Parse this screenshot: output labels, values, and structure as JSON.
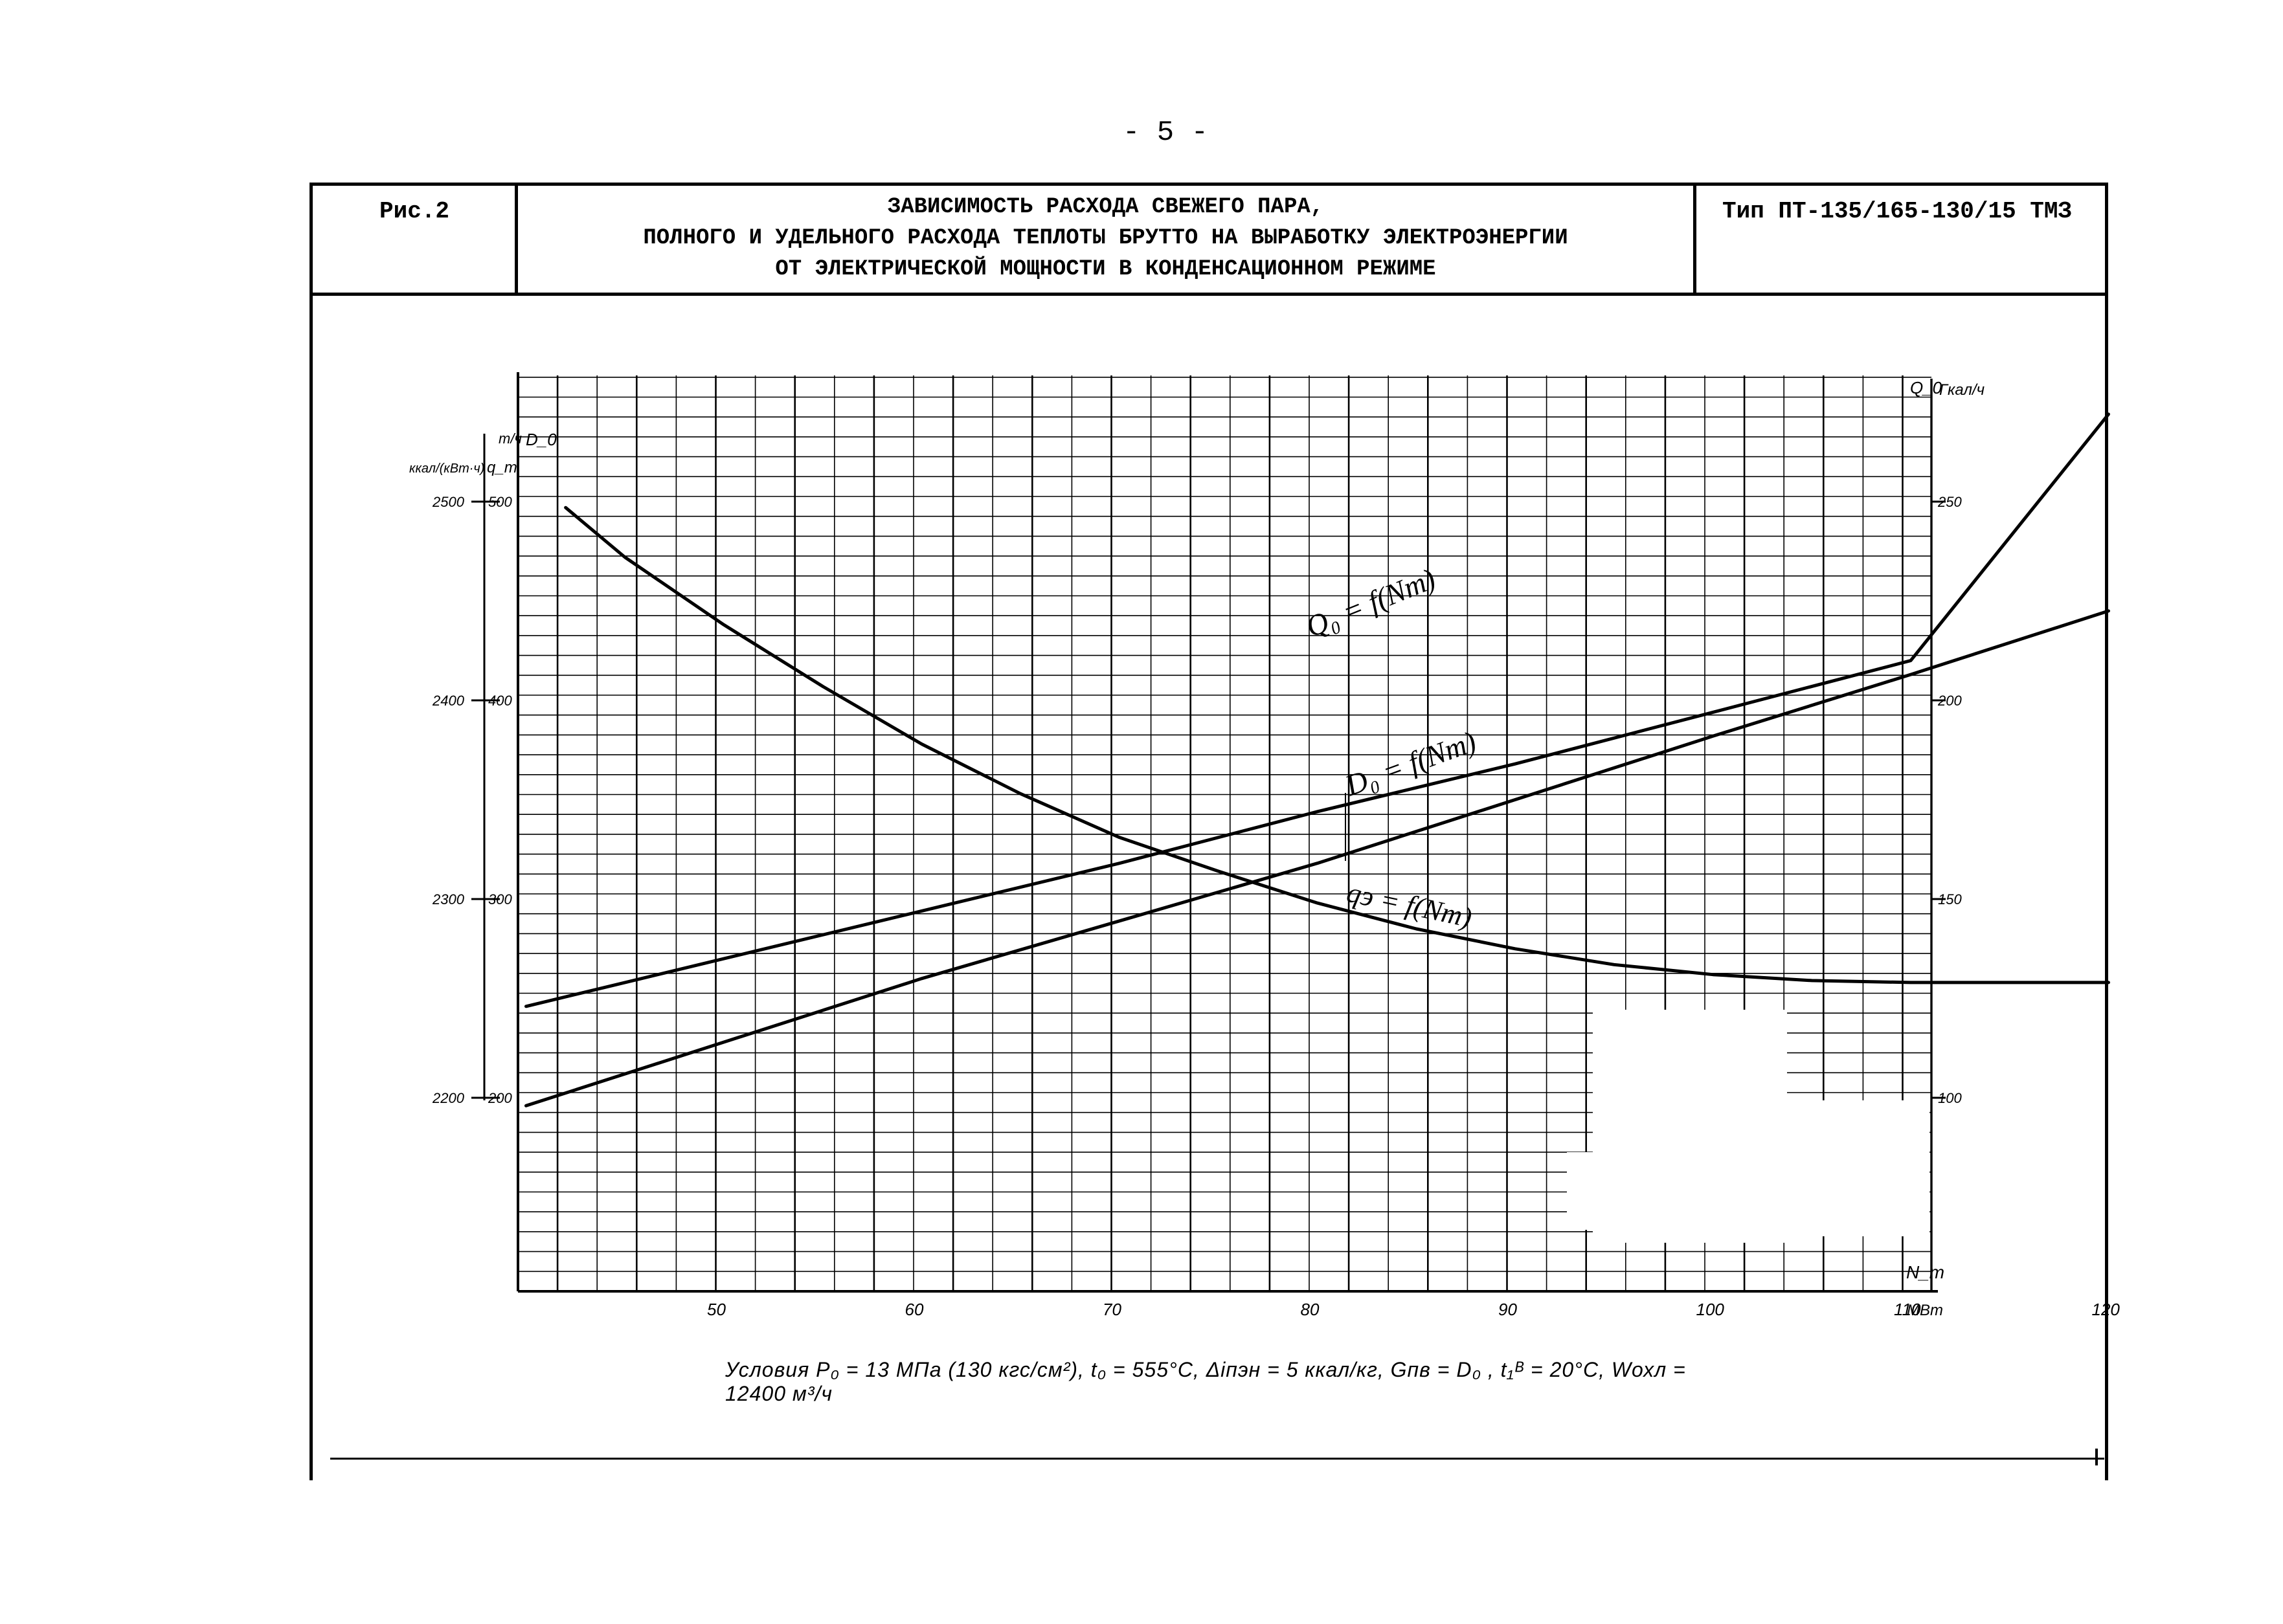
{
  "page": {
    "number": "- 5 -"
  },
  "header": {
    "figure_label": "Рис.2",
    "title_lines": [
      "ЗАВИСИМОСТЬ РАСХОДА СВЕЖЕГО ПАРА,",
      "ПОЛНОГО И УДЕЛЬНОГО РАСХОДА ТЕПЛОТЫ БРУТТО НА ВЫРАБОТКУ ЭЛЕКТРОЭНЕРГИИ",
      "ОТ ЭЛЕКТРИЧЕСКОЙ МОЩНОСТИ В КОНДЕНСАЦИОННОМ РЕЖИМЕ"
    ],
    "turbine_type": "Тип ПТ-135/165-130/15 ТМЗ"
  },
  "chart_data": {
    "type": "line",
    "title": "",
    "x_axis": {
      "label": "N_т",
      "unit": "МВт",
      "range": [
        40,
        122
      ],
      "ticks": [
        50,
        60,
        70,
        80,
        90,
        100,
        110,
        120
      ],
      "tick_labels": [
        "50",
        "60",
        "70",
        "80",
        "90",
        "100",
        "110",
        "120"
      ]
    },
    "left_axis_qe": {
      "label": "q_т",
      "unit": "ккал/(кВт·ч)",
      "ticks": [
        2200,
        2300,
        2400,
        2500
      ],
      "tick_labels": [
        "2200",
        "2300",
        "2400",
        "2500"
      ]
    },
    "left_axis_d0": {
      "label": "D_0",
      "unit": "т/ч",
      "ticks": [
        200,
        300,
        400,
        500
      ],
      "tick_labels": [
        "200",
        "300",
        "400",
        "500"
      ]
    },
    "right_axis_q0": {
      "label": "Q_0",
      "unit": "Гкал/ч",
      "ticks": [
        100,
        150,
        200,
        250
      ],
      "tick_labels": [
        "100",
        "150",
        "200",
        "250"
      ]
    },
    "grid": true,
    "series": [
      {
        "name": "Q_0 = f(N_т)",
        "axis": "right_axis_q0",
        "x": [
          40,
          50,
          60,
          70,
          80,
          90,
          100,
          110,
          120
        ],
        "y": [
          123,
          135,
          147,
          159,
          172,
          184,
          197,
          210,
          272
        ]
      },
      {
        "name": "D_0 = f(N_т)",
        "axis": "left_axis_d0",
        "x": [
          40,
          50,
          60,
          70,
          80,
          90,
          100,
          110,
          120
        ],
        "y": [
          196,
          228,
          260,
          289,
          318,
          350,
          382,
          413,
          445
        ]
      },
      {
        "name": "q_э = f(N_т)",
        "axis": "left_axis_qe",
        "x": [
          42,
          45,
          50,
          55,
          60,
          65,
          70,
          75,
          80,
          85,
          90,
          95,
          100,
          105,
          110,
          115,
          120
        ],
        "y": [
          2497,
          2472,
          2438,
          2407,
          2378,
          2353,
          2331,
          2314,
          2298,
          2285,
          2275,
          2267,
          2262,
          2259,
          2258,
          2258,
          2258
        ]
      }
    ],
    "curve_labels": [
      "Q₀ = f(Nт)",
      "D₀ = f(Nт)",
      "qэ = f(Nт)"
    ],
    "conditions": "Условия  P₀ = 13 МПа (130 кгс/см²),  t₀ = 555°C,  Δiпэн = 5 ккал/кг,  Gпв = D₀ ,  t₁ᴮ = 20°C,  Wохл = 12400 м³/ч"
  }
}
